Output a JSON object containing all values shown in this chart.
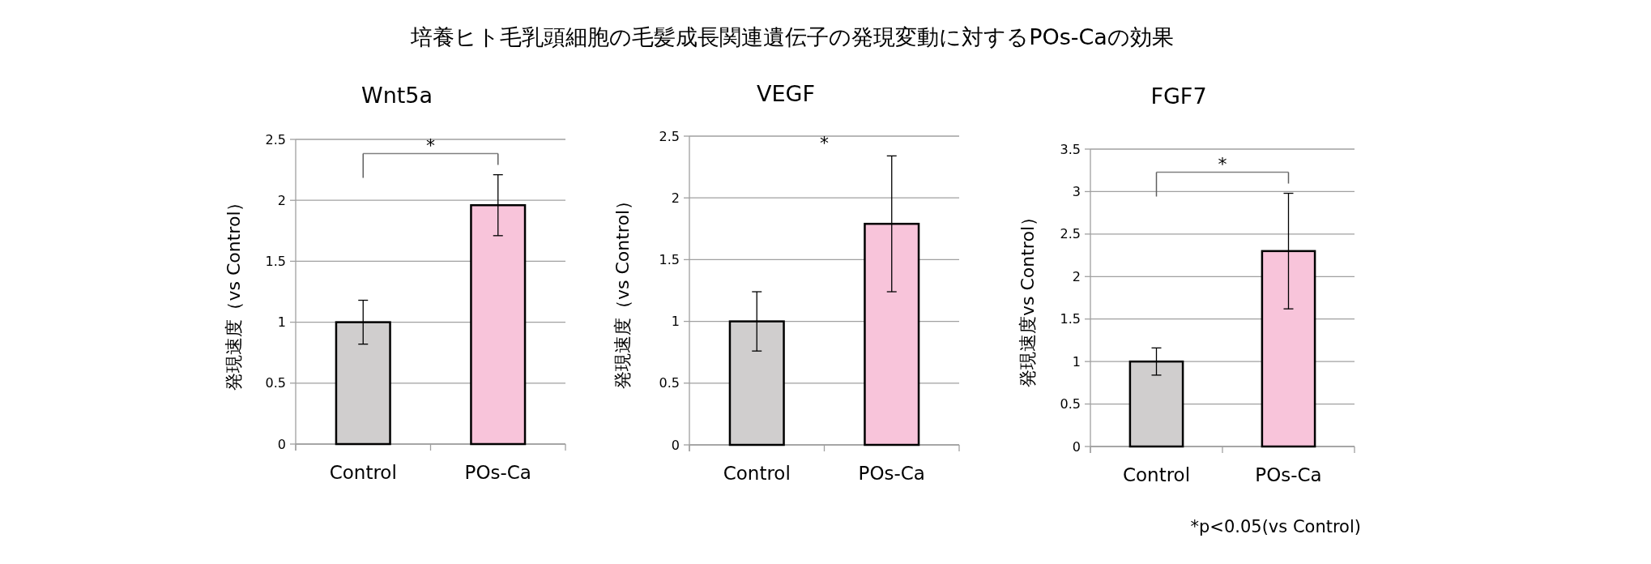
{
  "chart_data": [
    {
      "type": "other",
      "title": "培養ヒト毛乳頭細胞の毛髪成長関連遺伝子の発現変動に対するPOs-Caの効果"
    },
    {
      "type": "bar",
      "title": "Wnt5a",
      "ylabel": "発現速度（vs Control）",
      "categories": [
        "Control",
        "POs-Ca"
      ],
      "values": [
        1.0,
        1.96
      ],
      "colors": [
        "#d0cece",
        "#f8c4da"
      ],
      "errors": [
        0.18,
        0.25
      ],
      "ylim": [
        0,
        2.5
      ],
      "yticks": [
        0,
        0.5,
        1,
        1.5,
        2,
        2.5
      ],
      "grid": "y",
      "annotations": [
        "*"
      ]
    },
    {
      "type": "bar",
      "title": "VEGF",
      "ylabel": "発現速度（vs Control）",
      "categories": [
        "Control",
        "POs-Ca"
      ],
      "values": [
        1.0,
        1.79
      ],
      "colors": [
        "#d0cece",
        "#f8c4da"
      ],
      "errors": [
        0.24,
        0.55
      ],
      "ylim": [
        0,
        2.5
      ],
      "yticks": [
        0,
        0.5,
        1,
        1.5,
        2,
        2.5
      ],
      "grid": "y",
      "annotations": [
        "*"
      ]
    },
    {
      "type": "bar",
      "title": "FGF7",
      "ylabel": "発現速度vs Control）",
      "categories": [
        "Control",
        "POs-Ca"
      ],
      "values": [
        1.0,
        2.3
      ],
      "colors": [
        "#d0cece",
        "#f8c4da"
      ],
      "errors": [
        0.16,
        0.68
      ],
      "ylim": [
        0,
        3.5
      ],
      "yticks": [
        0,
        0.5,
        1,
        1.5,
        2,
        2.5,
        3,
        3.5
      ],
      "grid": "y",
      "annotations": [
        "*"
      ]
    },
    {
      "type": "other",
      "annotations": [
        "*p<0.05(vs Control)"
      ]
    }
  ]
}
